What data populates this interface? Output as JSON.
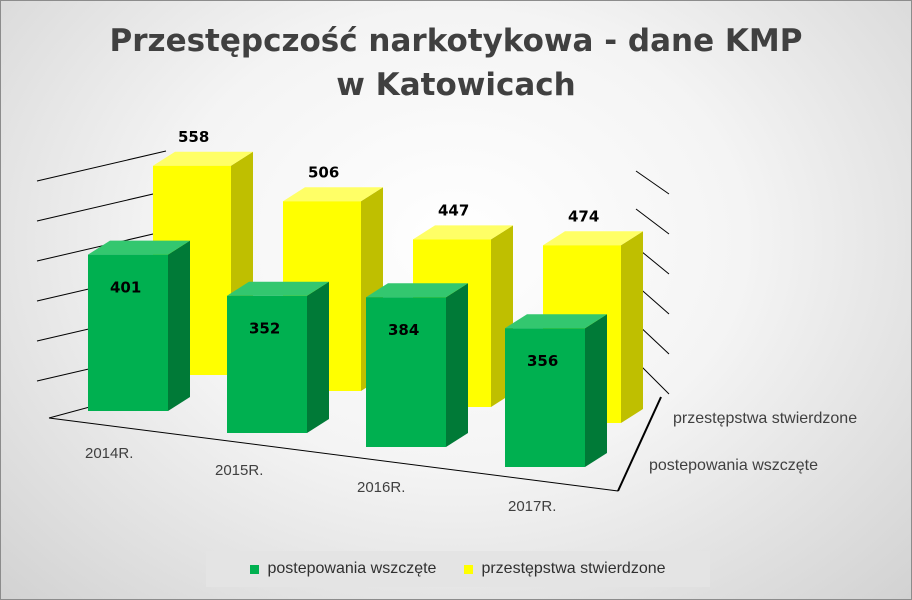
{
  "chart_data": {
    "type": "bar",
    "title_line1": "Przestępczość narkotykowa - dane KMP",
    "title_line2": "w Katowicach",
    "categories": [
      "2014R.",
      "2015R.",
      "2016R.",
      "2017R."
    ],
    "series": [
      {
        "name": "przestępstwa stwierdzone",
        "values": [
          558,
          506,
          447,
          474
        ],
        "colors": {
          "front": "#FFFF00",
          "side": "#BFBF00",
          "top": "#FFFF66"
        }
      },
      {
        "name": "postepowania wszczęte",
        "values": [
          401,
          352,
          384,
          356
        ],
        "colors": {
          "front": "#00B050",
          "side": "#007A37",
          "top": "#33C76F"
        }
      }
    ],
    "data_labels": true,
    "legend_position": "bottom",
    "style": "3d-clustered-column"
  },
  "legend": {
    "items": [
      {
        "label": "postepowania wszczęte",
        "color": "#00B050"
      },
      {
        "label": "przestępstwa stwierdzone",
        "color": "#FFFF00"
      }
    ]
  }
}
